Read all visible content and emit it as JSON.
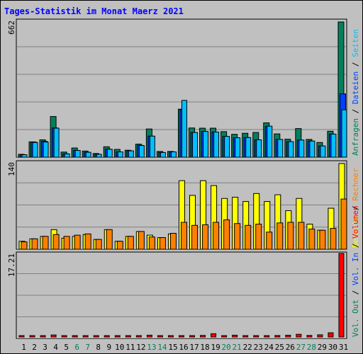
{
  "title": "Tages-Statistik im Monat Maerz 2021",
  "colors": {
    "background": "#c0c0c0",
    "title": "#0000ff",
    "hits": "#00805c",
    "files": "#0040ff",
    "pages": "#00c0ff",
    "visits": "#ffff00",
    "sites": "#ff8000",
    "volume": "#ff0000",
    "weekend_day_label": "#00805c"
  },
  "legend": {
    "top": [
      {
        "text": "Anfragen",
        "color": "#00805c"
      },
      {
        "text": "Dateien",
        "color": "#0040ff"
      },
      {
        "text": "Seiten",
        "color": "#00c0ff"
      }
    ],
    "middle": [
      {
        "text": "Besuche",
        "color": "#ffff00"
      },
      {
        "text": "Rechner",
        "color": "#ff8000"
      }
    ],
    "bottom": [
      {
        "text": "Vol. Out",
        "color": "#00805c"
      },
      {
        "text": "Vol. In",
        "color": "#0040ff"
      },
      {
        "text": "Volumen",
        "color": "#ff0000"
      }
    ]
  },
  "chart_data": {
    "type": "bar",
    "categories": [
      "1",
      "2",
      "3",
      "4",
      "5",
      "6",
      "7",
      "8",
      "9",
      "10",
      "11",
      "12",
      "13",
      "14",
      "15",
      "16",
      "17",
      "18",
      "19",
      "20",
      "21",
      "22",
      "23",
      "24",
      "25",
      "26",
      "27",
      "28",
      "29",
      "30",
      "31"
    ],
    "weekend_days": [
      6,
      7,
      13,
      14,
      20,
      21,
      27,
      28
    ],
    "panels": [
      {
        "id": "requests",
        "ymax_label": "662",
        "ymax": 662,
        "series": [
          {
            "name": "Anfragen",
            "values": [
              14,
              75,
              85,
              199,
              25,
              45,
              30,
              18,
              51,
              38,
              34,
              64,
              138,
              28,
              28,
              235,
              143,
              142,
              142,
              125,
              112,
              117,
              121,
              168,
              114,
              88,
              140,
              87,
              72,
              127,
              662
            ]
          },
          {
            "name": "Dateien",
            "values": [
              12,
              74,
              78,
              143,
              16,
              33,
              24,
              14,
              39,
              26,
              31,
              58,
              103,
              23,
              26,
              233,
              121,
              126,
              123,
              102,
              95,
              96,
              85,
              150,
              87,
              76,
              84,
              79,
              55,
              113,
              310
            ]
          },
          {
            "name": "Seiten",
            "values": [
              12,
              72,
              74,
              142,
              16,
              33,
              24,
              14,
              39,
              26,
              31,
              57,
              103,
              23,
              26,
              278,
              121,
              126,
              123,
              102,
              95,
              96,
              85,
              152,
              87,
              76,
              84,
              79,
              55,
              113,
              232
            ]
          }
        ]
      },
      {
        "id": "visits",
        "ymax_label": "140",
        "ymax": 140,
        "series": [
          {
            "name": "Besuche",
            "values": [
              13,
              17,
              21,
              32,
              18,
              21,
              24,
              16,
              32,
              13,
              21,
              29,
              23,
              19,
              25,
              112,
              88,
              112,
              104,
              83,
              85,
              78,
              91,
              78,
              89,
              63,
              83,
              41,
              31,
              67,
              140
            ]
          },
          {
            "name": "Rechner",
            "values": [
              12,
              17,
              21,
              24,
              21,
              23,
              25,
              16,
              32,
              13,
              21,
              29,
              20,
              19,
              26,
              44,
              39,
              40,
              44,
              48,
              42,
              39,
              41,
              28,
              43,
              44,
              44,
              33,
              31,
              34,
              82
            ]
          }
        ]
      },
      {
        "id": "volume",
        "ymax_label": "17.21",
        "ymax": 17.21,
        "series": [
          {
            "name": "Volumen",
            "values": [
              0.08,
              0.07,
              0.08,
              0.42,
              0.08,
              0.06,
              0.08,
              0.05,
              0.18,
              0.05,
              0.09,
              0.12,
              0.38,
              0.09,
              0.08,
              0.29,
              0.18,
              0.33,
              0.68,
              0.24,
              0.38,
              0.25,
              0.2,
              0.23,
              0.31,
              0.37,
              0.56,
              0.33,
              0.45,
              0.87,
              17.21
            ]
          }
        ]
      }
    ]
  }
}
